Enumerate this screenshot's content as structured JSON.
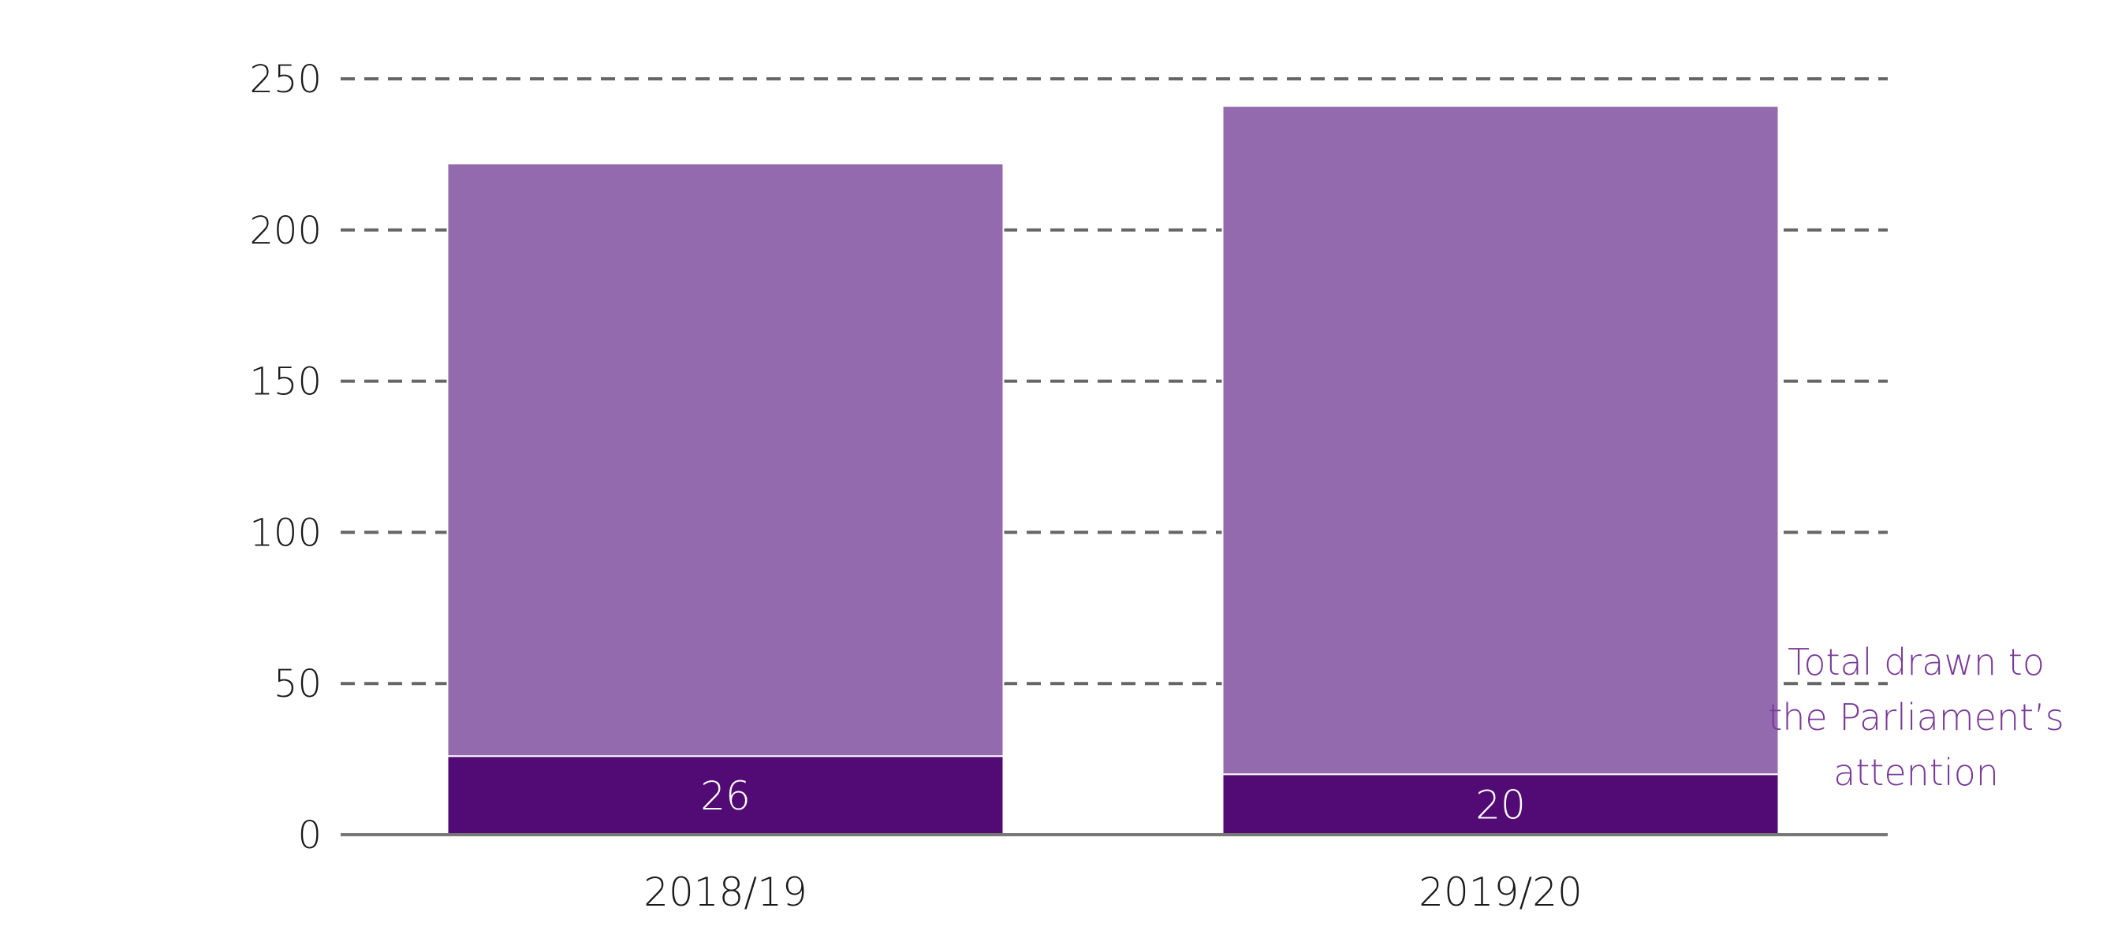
{
  "chart_data": {
    "type": "bar",
    "stacked": true,
    "categories": [
      "2018/19",
      "2019/20"
    ],
    "series": [
      {
        "values": [
          26,
          20
        ],
        "color": "#520a74",
        "show_value_labels": true
      },
      {
        "values": [
          196,
          221
        ],
        "color": "#946aae",
        "show_value_labels": false
      }
    ],
    "totals": [
      222,
      241
    ],
    "ylim": [
      0,
      250
    ],
    "y_ticks": [
      0,
      50,
      100,
      150,
      200,
      250
    ],
    "grid": true,
    "grid_style": "dashed",
    "title": "",
    "xlabel": "",
    "ylabel": "",
    "annotation": {
      "lines": [
        "Total drawn to",
        "the Parliament’s",
        "attention"
      ],
      "color": "#7a3a96"
    },
    "colors": {
      "grid": "#666666",
      "axis": "#777777",
      "text": "#1a1a1a",
      "data_label": "#ffffff"
    }
  }
}
